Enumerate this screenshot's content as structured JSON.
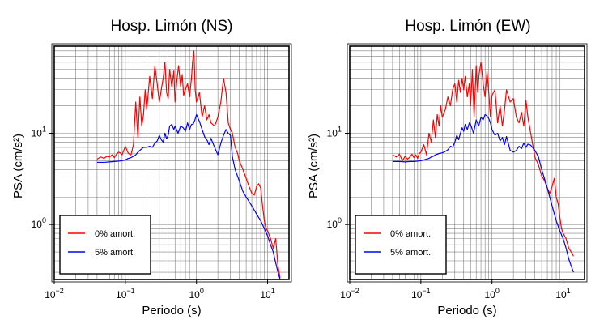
{
  "chart_data": [
    {
      "type": "line",
      "title": "Hosp. Limón (NS)",
      "xlabel": "Periodo (s)",
      "ylabel": "PSA (cm/s²)",
      "xscale": "log",
      "yscale": "log",
      "xlim": [
        0.01,
        20
      ],
      "ylim": [
        0.25,
        90
      ],
      "xticks": [
        {
          "base": "10",
          "exp": "−2"
        },
        {
          "base": "10",
          "exp": "−1"
        },
        {
          "base": "10",
          "exp": "0"
        },
        {
          "base": "10",
          "exp": "1"
        }
      ],
      "yticks": [
        {
          "value": 1,
          "base": "10",
          "exp": "0"
        },
        {
          "value": 10,
          "base": "10",
          "exp": "1"
        }
      ],
      "grid": true,
      "legend_position": "bottom-left",
      "series": [
        {
          "name": "0% amort.",
          "color": "#ff0000",
          "x": [
            0.04,
            0.045,
            0.05,
            0.055,
            0.06,
            0.065,
            0.07,
            0.075,
            0.08,
            0.085,
            0.09,
            0.095,
            0.1,
            0.11,
            0.12,
            0.13,
            0.14,
            0.15,
            0.16,
            0.17,
            0.18,
            0.19,
            0.2,
            0.22,
            0.24,
            0.26,
            0.28,
            0.3,
            0.32,
            0.34,
            0.36,
            0.38,
            0.4,
            0.42,
            0.45,
            0.48,
            0.5,
            0.53,
            0.56,
            0.6,
            0.63,
            0.66,
            0.7,
            0.75,
            0.8,
            0.85,
            0.88,
            0.92,
            0.96,
            1.0,
            1.1,
            1.2,
            1.3,
            1.4,
            1.5,
            1.6,
            1.8,
            2.0,
            2.2,
            2.4,
            2.6,
            2.8,
            3.0,
            3.2,
            3.5,
            3.8,
            4.0,
            4.5,
            5.0,
            5.5,
            6.0,
            6.5,
            7.0,
            7.5,
            8.0,
            8.5,
            9.0,
            9.5,
            10.0,
            11.0,
            12.0,
            13.0,
            14.0,
            15.0
          ],
          "y": [
            5.2,
            5.5,
            5.3,
            5.6,
            5.5,
            5.8,
            5.4,
            5.9,
            6.2,
            6.1,
            5.8,
            6.5,
            7.2,
            6.0,
            5.8,
            7.5,
            22,
            9,
            25,
            12,
            16,
            30,
            18,
            42,
            24,
            55,
            35,
            22,
            30,
            40,
            60,
            28,
            24,
            50,
            32,
            48,
            22,
            38,
            55,
            32,
            44,
            26,
            30,
            35,
            25,
            40,
            60,
            80,
            30,
            22,
            28,
            15,
            20,
            14,
            16,
            13,
            12,
            15,
            22,
            40,
            28,
            13,
            11,
            10,
            7,
            6,
            5,
            4,
            3.2,
            2.6,
            2.2,
            2.1,
            2.6,
            2.8,
            2.5,
            1.6,
            1.1,
            0.9,
            0.85,
            0.7,
            0.55,
            0.7,
            0.35,
            0.26
          ]
        },
        {
          "name": "5% amort.",
          "color": "#0000ff",
          "x": [
            0.04,
            0.05,
            0.06,
            0.07,
            0.08,
            0.09,
            0.1,
            0.11,
            0.12,
            0.13,
            0.14,
            0.15,
            0.16,
            0.18,
            0.2,
            0.22,
            0.24,
            0.26,
            0.28,
            0.3,
            0.32,
            0.34,
            0.36,
            0.38,
            0.4,
            0.42,
            0.45,
            0.48,
            0.5,
            0.55,
            0.6,
            0.65,
            0.7,
            0.75,
            0.8,
            0.85,
            0.9,
            0.95,
            1.0,
            1.1,
            1.2,
            1.3,
            1.4,
            1.5,
            1.6,
            1.8,
            2.0,
            2.2,
            2.4,
            2.6,
            2.8,
            3.0,
            3.2,
            3.5,
            4.0,
            4.5,
            5.0,
            6.0,
            7.0,
            8.0,
            9.0,
            10.0,
            11.0,
            12.0,
            13.0,
            14.0,
            15.0
          ],
          "y": [
            4.8,
            4.8,
            4.85,
            4.9,
            4.95,
            5.0,
            5.1,
            5.3,
            5.4,
            5.6,
            5.8,
            6.2,
            6.5,
            7.0,
            7.0,
            7.2,
            7.0,
            7.8,
            8.2,
            9.5,
            8.5,
            8.0,
            10,
            8.7,
            9.5,
            12,
            12.5,
            11,
            12,
            10,
            12,
            11.5,
            10.5,
            13,
            11,
            12.5,
            12.6,
            14,
            16,
            13.5,
            11,
            9.2,
            8.5,
            7.5,
            8.8,
            7.0,
            5.8,
            7.8,
            9.5,
            11,
            10,
            9.5,
            5.5,
            4.0,
            3.0,
            2.3,
            2.0,
            1.6,
            1.3,
            1.1,
            0.9,
            0.75,
            0.6,
            0.5,
            0.38,
            0.3,
            0.25
          ]
        }
      ]
    },
    {
      "type": "line",
      "title": "Hosp. Limón (EW)",
      "xlabel": "Periodo (s)",
      "ylabel": "PSA (cm/s²)",
      "xscale": "log",
      "yscale": "log",
      "xlim": [
        0.01,
        20
      ],
      "ylim": [
        0.25,
        90
      ],
      "xticks": [
        {
          "base": "10",
          "exp": "−2"
        },
        {
          "base": "10",
          "exp": "−1"
        },
        {
          "base": "10",
          "exp": "0"
        },
        {
          "base": "10",
          "exp": "1"
        }
      ],
      "yticks": [
        {
          "value": 1,
          "base": "10",
          "exp": "0"
        },
        {
          "value": 10,
          "base": "10",
          "exp": "1"
        }
      ],
      "grid": true,
      "legend_position": "bottom-left",
      "series": [
        {
          "name": "0% amort.",
          "color": "#ff0000",
          "x": [
            0.04,
            0.045,
            0.05,
            0.055,
            0.06,
            0.065,
            0.07,
            0.075,
            0.08,
            0.085,
            0.09,
            0.095,
            0.1,
            0.11,
            0.12,
            0.13,
            0.14,
            0.15,
            0.16,
            0.17,
            0.18,
            0.19,
            0.2,
            0.22,
            0.24,
            0.26,
            0.28,
            0.3,
            0.32,
            0.34,
            0.36,
            0.38,
            0.4,
            0.42,
            0.45,
            0.48,
            0.5,
            0.53,
            0.56,
            0.6,
            0.63,
            0.66,
            0.7,
            0.75,
            0.8,
            0.85,
            0.9,
            0.95,
            1.0,
            1.1,
            1.2,
            1.3,
            1.4,
            1.5,
            1.6,
            1.8,
            2.0,
            2.2,
            2.4,
            2.6,
            2.8,
            3.0,
            3.2,
            3.5,
            3.8,
            4.0,
            4.5,
            5.0,
            5.5,
            6.0,
            6.5,
            7.0,
            7.5,
            8.0,
            8.5,
            9.0,
            9.5,
            10.0,
            11.0,
            12.0,
            13.0,
            14.0
          ],
          "y": [
            5.8,
            5.5,
            5.9,
            5.0,
            5.6,
            5.2,
            5.5,
            5.9,
            5.4,
            5.8,
            5.3,
            6.0,
            6.2,
            7.5,
            5.8,
            10,
            8,
            14,
            9,
            16,
            12,
            20,
            15,
            18,
            25,
            20,
            30,
            35,
            22,
            38,
            28,
            40,
            30,
            42,
            25,
            35,
            20,
            50,
            15,
            55,
            28,
            45,
            60,
            35,
            25,
            48,
            28,
            15,
            26,
            30,
            13,
            20,
            12,
            18,
            30,
            22,
            24,
            15,
            13,
            17,
            12,
            23,
            15,
            10,
            7,
            5.5,
            4.5,
            3.4,
            3.0,
            2.5,
            2.2,
            2.6,
            3.2,
            2.0,
            1.7,
            1.2,
            0.9,
            0.8,
            0.7,
            0.55,
            0.5,
            0.45
          ]
        },
        {
          "name": "5% amort.",
          "color": "#0000ff",
          "x": [
            0.04,
            0.05,
            0.06,
            0.07,
            0.08,
            0.09,
            0.1,
            0.11,
            0.12,
            0.13,
            0.14,
            0.15,
            0.16,
            0.18,
            0.2,
            0.22,
            0.24,
            0.26,
            0.28,
            0.3,
            0.32,
            0.34,
            0.36,
            0.38,
            0.4,
            0.42,
            0.45,
            0.48,
            0.5,
            0.55,
            0.6,
            0.65,
            0.7,
            0.75,
            0.8,
            0.85,
            0.9,
            0.95,
            1.0,
            1.1,
            1.2,
            1.3,
            1.4,
            1.5,
            1.6,
            1.8,
            2.0,
            2.2,
            2.4,
            2.6,
            2.8,
            3.0,
            3.2,
            3.5,
            4.0,
            4.5,
            5.0,
            6.0,
            7.0,
            8.0,
            9.0,
            10.0,
            11.0,
            12.0,
            13.0,
            14.0
          ],
          "y": [
            4.9,
            4.9,
            4.85,
            4.9,
            4.9,
            4.95,
            5.0,
            5.1,
            5.2,
            5.3,
            5.5,
            5.6,
            5.8,
            6.0,
            6.1,
            6.3,
            6.6,
            7.2,
            7.0,
            8.0,
            9.5,
            8.5,
            10,
            11.5,
            10.5,
            12.5,
            11,
            13,
            12.5,
            10,
            14,
            12,
            15,
            14,
            16,
            15.5,
            14.5,
            13,
            11,
            9.5,
            10,
            8.2,
            9,
            7.5,
            9.2,
            6.5,
            6.2,
            6.5,
            7.2,
            6.8,
            7.8,
            7.0,
            7.6,
            7.4,
            6.5,
            5.5,
            4.0,
            2.5,
            1.6,
            1.1,
            0.85,
            0.7,
            0.55,
            0.42,
            0.35,
            0.3
          ]
        }
      ]
    }
  ]
}
